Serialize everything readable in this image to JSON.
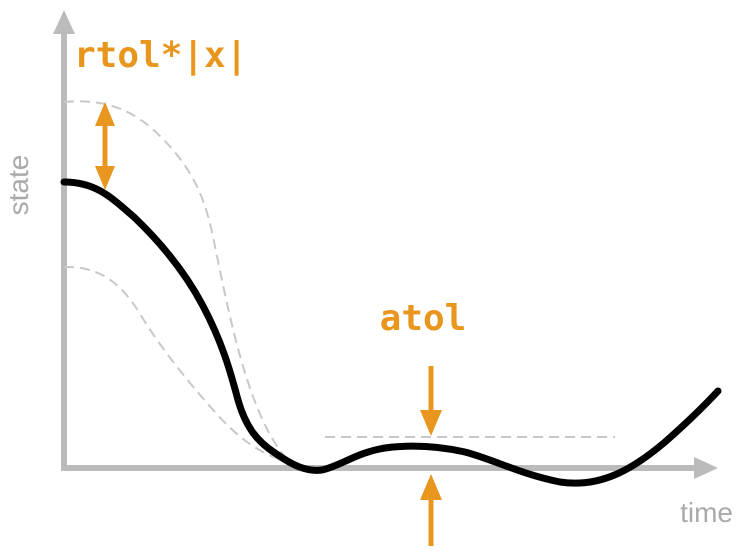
{
  "axes": {
    "x_label": "time",
    "y_label": "state"
  },
  "annotations": {
    "relative_tolerance": "rtol*|x|",
    "absolute_tolerance": "atol"
  },
  "colors": {
    "axis": "#bbbbbb",
    "axis_label": "#aaaaaa",
    "accent": "#e8961e",
    "curve": "#000000",
    "envelope": "#c8c8c8"
  }
}
